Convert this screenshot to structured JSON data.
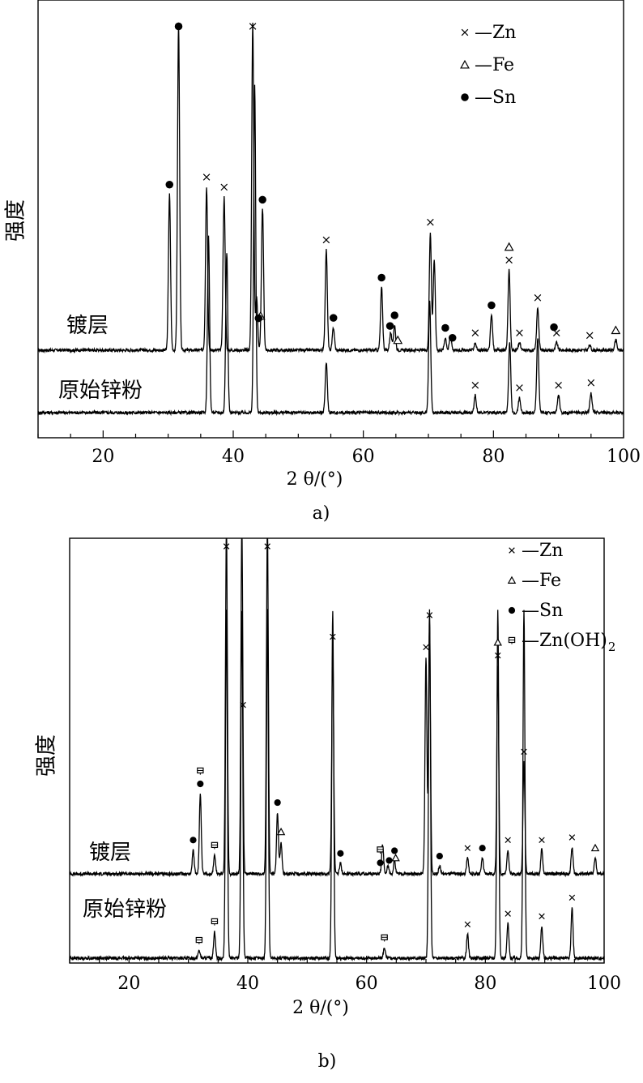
{
  "chart_data": [
    {
      "id": "a",
      "type": "line",
      "caption": "a)",
      "xlabel": "2 θ/(°)",
      "ylabel": "强度",
      "xlim": [
        10,
        100
      ],
      "xticks": [
        20,
        40,
        60,
        80,
        100
      ],
      "grid": false,
      "legend_position": "top-right",
      "legend": [
        {
          "marker": "cross",
          "label": "—Zn"
        },
        {
          "marker": "triangle",
          "label": "—Fe"
        },
        {
          "marker": "dot",
          "label": "—Sn"
        }
      ],
      "series": [
        {
          "name": "镀层",
          "offset": 0.3,
          "peaks": [
            [
              30.2,
              0.62
            ],
            [
              31.6,
              1.3
            ],
            [
              35.9,
              0.65
            ],
            [
              38.6,
              0.61
            ],
            [
              43.0,
              1.3
            ],
            [
              43.6,
              0.21
            ],
            [
              44.5,
              0.56
            ],
            [
              54.3,
              0.4
            ],
            [
              55.4,
              0.09
            ],
            [
              62.8,
              0.25
            ],
            [
              64.2,
              0.07
            ],
            [
              64.8,
              0.1
            ],
            [
              70.3,
              0.47
            ],
            [
              70.9,
              0.36
            ],
            [
              72.6,
              0.05
            ],
            [
              73.4,
              0.06
            ],
            [
              77.2,
              0.03
            ],
            [
              79.7,
              0.14
            ],
            [
              82.4,
              0.32
            ],
            [
              84.0,
              0.03
            ],
            [
              86.8,
              0.17
            ],
            [
              89.7,
              0.03
            ],
            [
              94.8,
              0.02
            ],
            [
              98.8,
              0.04
            ]
          ]
        },
        {
          "name": "原始锌粉",
          "offset": 0.0,
          "peaks": [
            [
              36.2,
              0.7
            ],
            [
              39.0,
              0.64
            ],
            [
              43.3,
              1.3
            ],
            [
              54.3,
              0.2
            ],
            [
              70.2,
              0.45
            ],
            [
              77.2,
              0.07
            ],
            [
              82.5,
              0.28
            ],
            [
              84.0,
              0.06
            ],
            [
              86.8,
              0.3
            ],
            [
              90.0,
              0.07
            ],
            [
              95.0,
              0.08
            ]
          ]
        }
      ],
      "phase_markers": [
        {
          "phase": "Zn",
          "x": [
            35.9,
            38.6,
            43.0,
            54.3,
            70.3,
            77.2,
            82.4,
            84.0,
            86.8,
            89.7,
            94.8
          ],
          "series": "镀层"
        },
        {
          "phase": "Fe",
          "x": [
            44.2,
            65.3,
            82.4,
            98.8
          ],
          "series": "镀层"
        },
        {
          "phase": "Sn",
          "x": [
            30.2,
            31.6,
            43.9,
            44.5,
            55.4,
            62.8,
            64.1,
            64.8,
            72.6,
            73.7,
            79.7,
            89.3
          ],
          "series": "镀层"
        },
        {
          "phase": "Zn",
          "x": [
            77.2,
            84.0,
            90.0,
            95.0
          ],
          "series": "原始锌粉"
        }
      ]
    },
    {
      "id": "b",
      "type": "line",
      "caption": "b)",
      "xlabel": "2 θ/(°)",
      "ylabel": "强度",
      "xlim": [
        10,
        100
      ],
      "xticks": [
        20,
        40,
        60,
        80,
        100
      ],
      "grid": false,
      "legend_position": "top-right",
      "legend": [
        {
          "marker": "cross",
          "label": "—Zn"
        },
        {
          "marker": "triangle",
          "label": "—Fe"
        },
        {
          "marker": "dot",
          "label": "—Sn"
        },
        {
          "marker": "square",
          "label": "—Zn(OH)",
          "sub": "2"
        }
      ],
      "series": [
        {
          "name": "镀层",
          "offset": 0.25,
          "peaks": [
            [
              30.8,
              0.09
            ],
            [
              32.0,
              0.3
            ],
            [
              34.4,
              0.07
            ],
            [
              36.4,
              1.3
            ],
            [
              39.0,
              1.3
            ],
            [
              43.3,
              1.3
            ],
            [
              45.0,
              0.23
            ],
            [
              45.6,
              0.12
            ],
            [
              54.3,
              0.85
            ],
            [
              55.6,
              0.04
            ],
            [
              62.7,
              0.11
            ],
            [
              63.6,
              0.03
            ],
            [
              64.7,
              0.05
            ],
            [
              70.0,
              0.81
            ],
            [
              70.6,
              0.93
            ],
            [
              72.3,
              0.03
            ],
            [
              77.0,
              0.06
            ],
            [
              79.5,
              0.06
            ],
            [
              82.1,
              0.78
            ],
            [
              83.8,
              0.09
            ],
            [
              86.5,
              0.42
            ],
            [
              89.5,
              0.09
            ],
            [
              94.6,
              0.1
            ],
            [
              98.5,
              0.06
            ]
          ]
        },
        {
          "name": "原始锌粉",
          "offset": 0.0,
          "peaks": [
            [
              31.8,
              0.03
            ],
            [
              34.4,
              0.1
            ],
            [
              36.4,
              1.3
            ],
            [
              39.0,
              1.3
            ],
            [
              43.3,
              1.3
            ],
            [
              54.3,
              1.3
            ],
            [
              63.0,
              0.04
            ],
            [
              70.6,
              1.3
            ],
            [
              77.0,
              0.09
            ],
            [
              82.1,
              1.3
            ],
            [
              83.8,
              0.13
            ],
            [
              86.5,
              1.3
            ],
            [
              89.5,
              0.12
            ],
            [
              94.6,
              0.19
            ]
          ]
        }
      ],
      "phase_markers": [
        {
          "phase": "Zn",
          "x": [
            36.4,
            39.2,
            43.3,
            54.3,
            70.0,
            70.6,
            77.0,
            82.1,
            83.8,
            86.5,
            89.5,
            94.6
          ],
          "series": "镀层"
        },
        {
          "phase": "Fe",
          "x": [
            45.6,
            64.9,
            82.1,
            98.5
          ],
          "series": "镀层"
        },
        {
          "phase": "Sn",
          "x": [
            30.8,
            32.0,
            45.0,
            55.6,
            62.3,
            63.8,
            64.7,
            72.3,
            79.5
          ],
          "series": "镀层"
        },
        {
          "phase": "Zn(OH)2",
          "x": [
            32.0,
            34.4,
            62.3
          ],
          "series": "镀层"
        },
        {
          "phase": "Zn",
          "x": [
            77.0,
            83.8,
            89.5,
            94.6
          ],
          "series": "原始锌粉"
        },
        {
          "phase": "Zn(OH)2",
          "x": [
            31.8,
            34.4,
            63.0
          ],
          "series": "原始锌粉"
        }
      ]
    }
  ]
}
